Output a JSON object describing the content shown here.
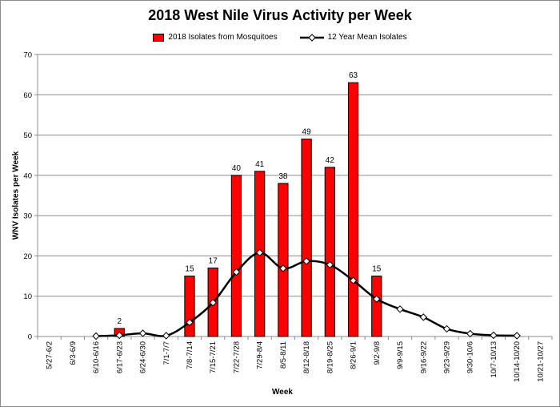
{
  "chart_data": {
    "type": "bar",
    "title": "2018 West Nile Virus Activity per Week",
    "xlabel": "Week",
    "ylabel": "WNV Isolates per Week",
    "ylim": [
      0,
      70
    ],
    "yticks": [
      0,
      10,
      20,
      30,
      40,
      50,
      60,
      70
    ],
    "grid": "horizontal",
    "legend_position": "top",
    "categories": [
      "5/27-6/2",
      "6/3-6/9",
      "6/10-6/16",
      "6/17-6/23",
      "6/24-6/30",
      "7/1-7/7",
      "7/8-7/14",
      "7/15-7/21",
      "7/22-7/28",
      "7/29-8/4",
      "8/5-8/11",
      "8/12-8/18",
      "8/19-8/25",
      "8/26-9/1",
      "9/2-9/8",
      "9/9-9/15",
      "9/16-9/22",
      "9/23-9/29",
      "9/30-10/6",
      "10/7-10/13",
      "10/14-10/20",
      "10/21-10/27"
    ],
    "series": [
      {
        "name": "2018 Isolates from Mosquitoes",
        "kind": "bar",
        "color": "#ff0000",
        "values": [
          null,
          null,
          null,
          2,
          null,
          null,
          15,
          17,
          40,
          41,
          38,
          49,
          42,
          63,
          15,
          null,
          null,
          null,
          null,
          null,
          null,
          null
        ],
        "labels": [
          null,
          null,
          null,
          "2",
          null,
          null,
          "15",
          "17",
          "40",
          "41",
          "38",
          "49",
          "42",
          "63",
          "15",
          null,
          null,
          null,
          null,
          null,
          null,
          null
        ]
      },
      {
        "name": "12 Year Mean Isolates",
        "kind": "line",
        "color": "#000000",
        "marker": "diamond",
        "values": [
          null,
          null,
          0.1,
          0.3,
          0.8,
          0.2,
          3.5,
          8.4,
          16.0,
          20.8,
          16.9,
          18.7,
          17.8,
          13.9,
          9.3,
          6.8,
          4.8,
          1.9,
          0.7,
          0.3,
          0.2,
          null
        ]
      }
    ]
  }
}
